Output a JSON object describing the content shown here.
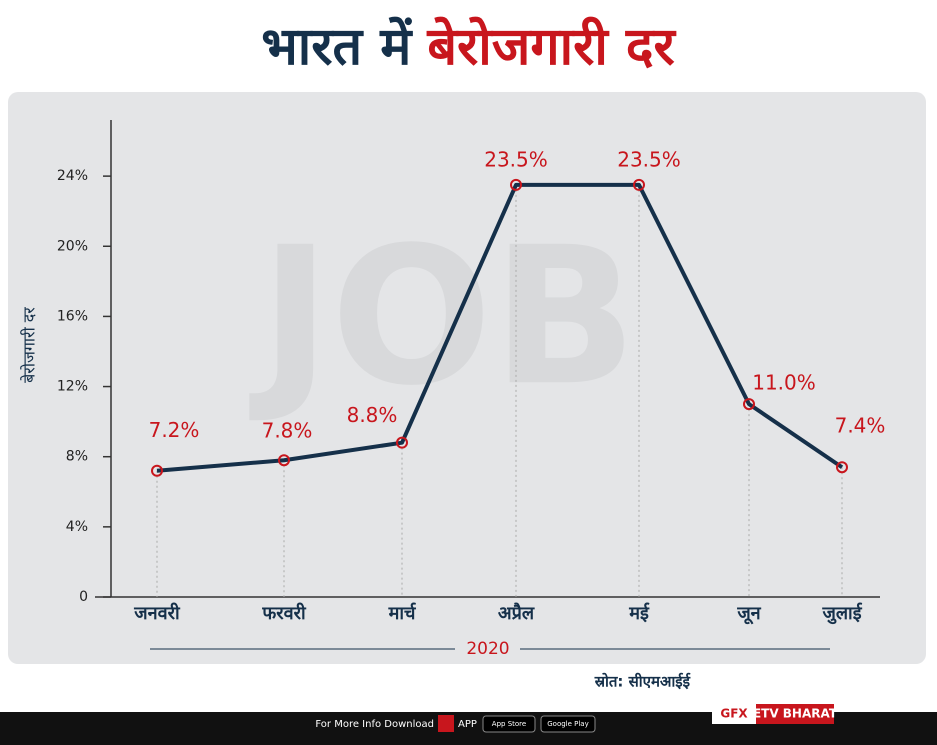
{
  "chart_data": {
    "type": "line",
    "title_parts": [
      "भारत में",
      "बेरोजगारी दर"
    ],
    "y_label": "बेरोजगारी दर",
    "x_group_label": "2020",
    "categories": [
      "जनवरी",
      "फरवरी",
      "मार्च",
      "अप्रैल",
      "मई",
      "जून",
      "जुलाई"
    ],
    "values": [
      7.2,
      7.8,
      8.8,
      23.5,
      23.5,
      11.0,
      7.4
    ],
    "value_labels": [
      "7.2%",
      "7.8%",
      "8.8%",
      "23.5%",
      "23.5%",
      "11.0%",
      "7.4%"
    ],
    "color": "#15304a",
    "marker_color": "#c8161d",
    "ylim": [
      0,
      27.2
    ],
    "yticks": [
      0,
      {
        "value": 4,
        "label": "4%"
      },
      {
        "value": 8,
        "label": "8%"
      },
      {
        "value": 12,
        "label": "12%"
      },
      {
        "value": 16,
        "label": "16%"
      },
      {
        "value": 20,
        "label": "20%"
      },
      {
        "value": 24,
        "label": "24%"
      }
    ]
  },
  "source": "स्रोत: सीएमआईई",
  "footer": {
    "info": "For More Info Download",
    "app": "APP",
    "app_store": "App Store",
    "google_play": "Google Play",
    "gfx": "GFX",
    "brand": "ETV BHARAT"
  }
}
